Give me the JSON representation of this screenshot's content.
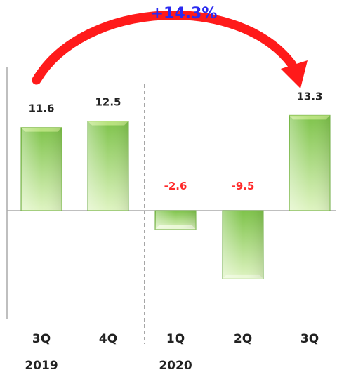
{
  "chart_data": {
    "type": "bar",
    "categories": [
      "3Q",
      "4Q",
      "1Q",
      "2Q",
      "3Q"
    ],
    "values": [
      11.6,
      12.5,
      -2.6,
      -9.5,
      13.3
    ],
    "data_labels": [
      "11.6",
      "12.5",
      "-2.6",
      "-9.5",
      "13.3"
    ],
    "year_labels": [
      "2019",
      "2020"
    ],
    "annotation": "+14.3%",
    "title": "",
    "xlabel": "",
    "ylabel": "",
    "ylim": [
      -15,
      21
    ],
    "grid": false,
    "legend": "none"
  },
  "colors": {
    "bar_light": "#d9f2b8",
    "bar_dark": "#7ec34a",
    "bar_top": "#b8e27e",
    "bar_edge": "#6aa83c",
    "positive_label": "#222222",
    "negative_label": "#ff2a2a",
    "annotation": "#2a2af0",
    "arrow": "#ff1a1a",
    "divider": "#888888",
    "axis": "#aaaaaa"
  }
}
